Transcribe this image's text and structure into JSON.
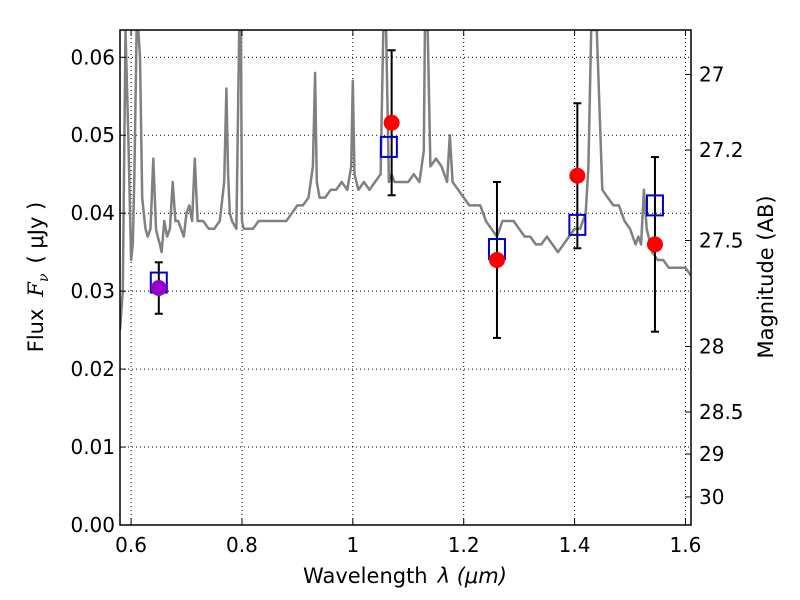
{
  "chart_data": {
    "type": "scatter",
    "xlabel": "Wavelength",
    "xlabel_math": "λ (μm)",
    "ylabel": "Flux",
    "ylabel_math": "F",
    "ylabel_sub": "ν",
    "ylabel_unit": "( μJy )",
    "ylabel_right": "Magnitude (AB)",
    "xlim": [
      0.58,
      1.61
    ],
    "ylim": [
      0.0,
      0.0635
    ],
    "grid": true,
    "x_ticks": [
      0.6,
      0.8,
      1.0,
      1.2,
      1.4,
      1.6
    ],
    "x_tick_labels": [
      "0.6",
      "0.8",
      "1",
      "1.2",
      "1.4",
      "1.6"
    ],
    "y_ticks": [
      0.0,
      0.01,
      0.02,
      0.03,
      0.04,
      0.05,
      0.06
    ],
    "y_tick_labels": [
      "0.00",
      "0.01",
      "0.02",
      "0.03",
      "0.04",
      "0.05",
      "0.06"
    ],
    "right_ticks": [
      {
        "label": "27",
        "flux": 0.0578
      },
      {
        "label": "27.2",
        "flux": 0.0481
      },
      {
        "label": "27.5",
        "flux": 0.0365
      },
      {
        "label": "28",
        "flux": 0.0229
      },
      {
        "label": "28.5",
        "flux": 0.0145
      },
      {
        "label": "29",
        "flux": 0.0091
      },
      {
        "label": "30",
        "flux": 0.0036
      }
    ],
    "colors": {
      "model": "#808080",
      "observed": "#ff0000",
      "synthetic": "#0000cc",
      "first_point": "#9900cc",
      "errorbar": "#000000"
    },
    "observed": [
      {
        "x": 0.65,
        "y": 0.0304,
        "err": 0.0033
      },
      {
        "x": 1.07,
        "y": 0.0516,
        "err": 0.0093
      },
      {
        "x": 1.26,
        "y": 0.034,
        "err": 0.01
      },
      {
        "x": 1.405,
        "y": 0.0448,
        "err": 0.0093
      },
      {
        "x": 1.545,
        "y": 0.036,
        "err": 0.0112
      }
    ],
    "synthetic": [
      {
        "x": 0.65,
        "y": 0.0311
      },
      {
        "x": 1.065,
        "y": 0.0485
      },
      {
        "x": 1.26,
        "y": 0.0354
      },
      {
        "x": 1.405,
        "y": 0.0385
      },
      {
        "x": 1.545,
        "y": 0.041
      }
    ],
    "model_spectrum": {
      "x": [
        0.58,
        0.585,
        0.59,
        0.595,
        0.6,
        0.603,
        0.606,
        0.61,
        0.613,
        0.616,
        0.62,
        0.623,
        0.626,
        0.63,
        0.635,
        0.64,
        0.645,
        0.648,
        0.652,
        0.655,
        0.66,
        0.665,
        0.67,
        0.675,
        0.68,
        0.685,
        0.69,
        0.695,
        0.7,
        0.705,
        0.71,
        0.715,
        0.72,
        0.73,
        0.74,
        0.75,
        0.76,
        0.768,
        0.772,
        0.775,
        0.778,
        0.782,
        0.79,
        0.795,
        0.798,
        0.8,
        0.803,
        0.81,
        0.82,
        0.83,
        0.84,
        0.85,
        0.86,
        0.87,
        0.88,
        0.89,
        0.9,
        0.91,
        0.92,
        0.928,
        0.932,
        0.935,
        0.94,
        0.95,
        0.96,
        0.97,
        0.98,
        0.99,
        0.997,
        1.0,
        1.003,
        1.01,
        1.02,
        1.03,
        1.04,
        1.05,
        1.055,
        1.06,
        1.065,
        1.07,
        1.075,
        1.08,
        1.09,
        1.1,
        1.11,
        1.12,
        1.128,
        1.13,
        1.135,
        1.14,
        1.15,
        1.16,
        1.17,
        1.175,
        1.18,
        1.19,
        1.2,
        1.21,
        1.22,
        1.23,
        1.24,
        1.25,
        1.26,
        1.27,
        1.28,
        1.29,
        1.3,
        1.31,
        1.32,
        1.33,
        1.34,
        1.35,
        1.36,
        1.37,
        1.38,
        1.39,
        1.4,
        1.41,
        1.42,
        1.425,
        1.43,
        1.44,
        1.45,
        1.46,
        1.47,
        1.48,
        1.49,
        1.5,
        1.51,
        1.515,
        1.52,
        1.525,
        1.53,
        1.54,
        1.55,
        1.56,
        1.57,
        1.58,
        1.59,
        1.6,
        1.61
      ],
      "y": [
        0.025,
        0.03,
        0.0635,
        0.05,
        0.034,
        0.036,
        0.045,
        0.0635,
        0.0635,
        0.06,
        0.042,
        0.04,
        0.038,
        0.037,
        0.038,
        0.047,
        0.038,
        0.037,
        0.036,
        0.035,
        0.039,
        0.037,
        0.038,
        0.044,
        0.039,
        0.039,
        0.038,
        0.037,
        0.04,
        0.041,
        0.039,
        0.047,
        0.039,
        0.039,
        0.038,
        0.038,
        0.039,
        0.044,
        0.056,
        0.045,
        0.04,
        0.039,
        0.038,
        0.0635,
        0.0635,
        0.039,
        0.038,
        0.038,
        0.038,
        0.039,
        0.039,
        0.039,
        0.039,
        0.039,
        0.039,
        0.04,
        0.041,
        0.041,
        0.042,
        0.046,
        0.058,
        0.044,
        0.042,
        0.042,
        0.043,
        0.043,
        0.044,
        0.043,
        0.046,
        0.057,
        0.045,
        0.043,
        0.044,
        0.043,
        0.044,
        0.045,
        0.0635,
        0.0635,
        0.044,
        0.045,
        0.044,
        0.044,
        0.044,
        0.044,
        0.045,
        0.044,
        0.048,
        0.0635,
        0.0635,
        0.046,
        0.047,
        0.046,
        0.044,
        0.05,
        0.044,
        0.043,
        0.042,
        0.041,
        0.041,
        0.041,
        0.039,
        0.038,
        0.037,
        0.039,
        0.039,
        0.039,
        0.038,
        0.037,
        0.037,
        0.036,
        0.036,
        0.037,
        0.036,
        0.035,
        0.036,
        0.037,
        0.038,
        0.038,
        0.04,
        0.046,
        0.0635,
        0.0635,
        0.043,
        0.042,
        0.041,
        0.041,
        0.039,
        0.038,
        0.036,
        0.037,
        0.036,
        0.043,
        0.038,
        0.035,
        0.034,
        0.034,
        0.033,
        0.033,
        0.033,
        0.033,
        0.032
      ]
    }
  }
}
